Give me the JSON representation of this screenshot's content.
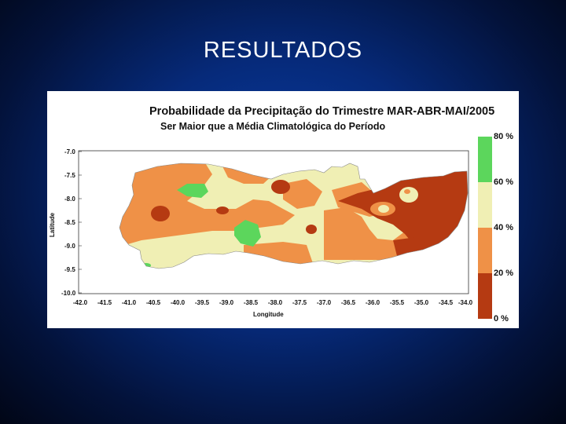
{
  "slide": {
    "title": "RESULTADOS"
  },
  "figure": {
    "title": "Probabilidade da Precipitação do Trimestre MAR-ABR-MAI/2005",
    "subtitle": "Ser Maior que a Média Climatológica do Período",
    "xlabel": "Longitude",
    "ylabel": "Latitude",
    "y_ticks": [
      "-7.0",
      "-7.5",
      "-8.0",
      "-8.5",
      "-9.0",
      "-9.5",
      "-10.0"
    ],
    "x_ticks": [
      "-42.0",
      "-41.5",
      "-41.0",
      "-40.5",
      "-40.0",
      "-39.5",
      "-39.0",
      "-38.5",
      "-38.0",
      "-37.5",
      "-37.0",
      "-36.5",
      "-36.0",
      "-35.5",
      "-35.0",
      "-34.5",
      "-34.0"
    ],
    "legend": [
      {
        "label": "80 %",
        "color": "#5cd65c"
      },
      {
        "label": "60 %",
        "color": "#f0efb4"
      },
      {
        "label": "40 %",
        "color": "#ef9147"
      },
      {
        "label": "20 %",
        "color": "#b53a12"
      },
      {
        "label": "0 %",
        "color": null
      }
    ],
    "colors": {
      "green": "#5cd65c",
      "cream": "#f0efb4",
      "orange": "#ef9147",
      "darkred": "#b53a12"
    }
  }
}
